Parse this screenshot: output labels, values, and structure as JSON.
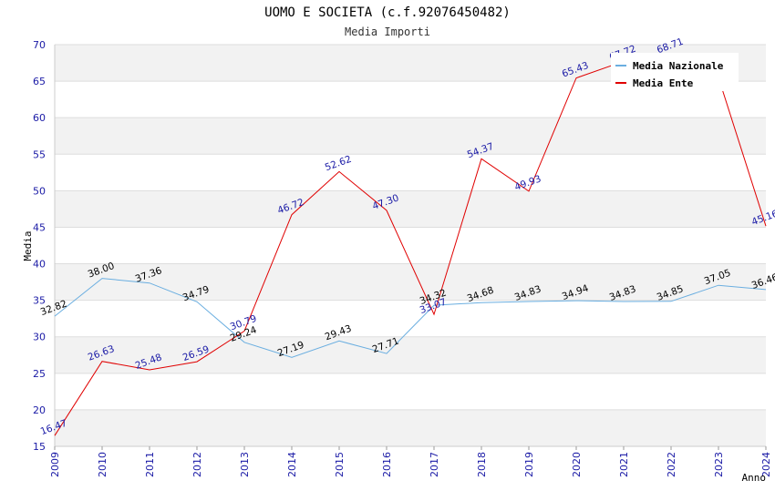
{
  "chart_data": {
    "type": "line",
    "title": "UOMO E SOCIETA (c.f.92076450482)",
    "subtitle": "Media Importi",
    "xlabel": "Anno",
    "ylabel": "Media",
    "ylim": [
      15,
      70
    ],
    "yticks": [
      15,
      20,
      25,
      30,
      35,
      40,
      45,
      50,
      55,
      60,
      65,
      70
    ],
    "x": [
      "2009",
      "2010",
      "2011",
      "2012",
      "2013",
      "2014",
      "2015",
      "2016",
      "2017",
      "2018",
      "2019",
      "2020",
      "2021",
      "2022",
      "2023",
      "2024"
    ],
    "grid": true,
    "legend_position": "top-right",
    "series": [
      {
        "name": "Media Nazionale",
        "color": "#6aaee0",
        "label_color": "#000000",
        "values": [
          32.82,
          38.0,
          37.36,
          34.79,
          29.24,
          27.19,
          29.43,
          27.71,
          34.32,
          34.68,
          34.83,
          34.94,
          34.83,
          34.85,
          37.05,
          36.46
        ],
        "labels": [
          "32.82",
          "38.00",
          "37.36",
          "34.79",
          "29.24",
          "27.19",
          "29.43",
          "27.71",
          "34.32",
          "34.68",
          "34.83",
          "34.94",
          "34.83",
          "34.85",
          "37.05",
          "36.46"
        ]
      },
      {
        "name": "Media Ente",
        "color": "#e00000",
        "label_color": "#1a1aa6",
        "values": [
          16.47,
          26.63,
          25.48,
          26.59,
          30.79,
          46.72,
          52.62,
          47.3,
          33.07,
          54.37,
          49.93,
          65.43,
          67.72,
          68.71,
          65.5,
          45.16
        ],
        "labels": [
          "16.47",
          "26.63",
          "25.48",
          "26.59",
          "30.79",
          "46.72",
          "52.62",
          "47.30",
          "33.07",
          "54.37",
          "49.93",
          "65.43",
          "67.72",
          "68.71",
          "",
          "45.16"
        ]
      }
    ]
  }
}
